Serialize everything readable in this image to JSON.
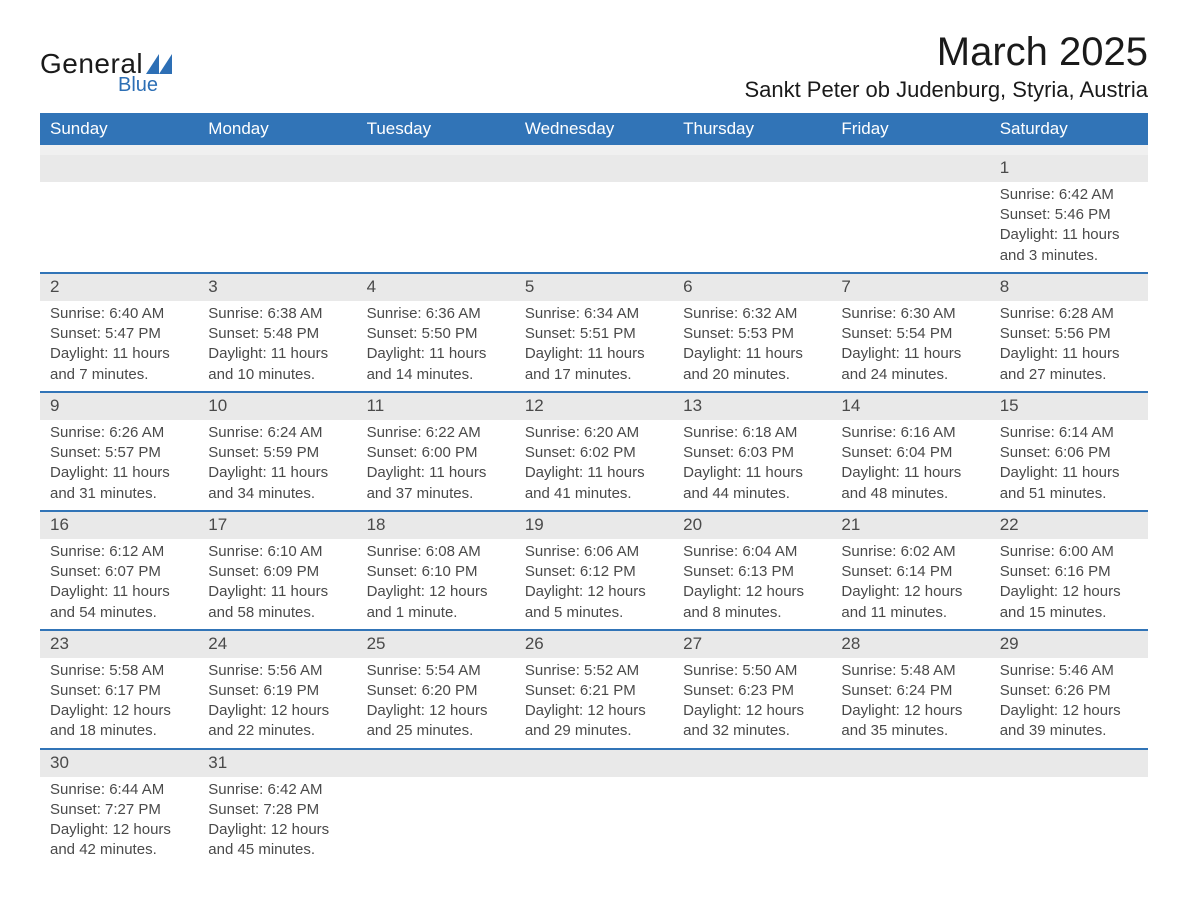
{
  "logo": {
    "text_main": "General",
    "text_sub": "Blue",
    "triangle_color": "#2d6fb5"
  },
  "title": {
    "month": "March 2025",
    "location": "Sankt Peter ob Judenburg, Styria, Austria"
  },
  "colors": {
    "header_bg": "#3174b7",
    "header_text": "#ffffff",
    "daynum_bg": "#e9e9e9",
    "week_border": "#3174b7",
    "body_text": "#4a4a4a",
    "page_bg": "#ffffff"
  },
  "typography": {
    "month_title_fontsize": 40,
    "location_fontsize": 22,
    "weekday_fontsize": 17,
    "daynum_fontsize": 17,
    "body_fontsize": 15
  },
  "weekdays": [
    "Sunday",
    "Monday",
    "Tuesday",
    "Wednesday",
    "Thursday",
    "Friday",
    "Saturday"
  ],
  "weeks": [
    [
      null,
      null,
      null,
      null,
      null,
      null,
      {
        "n": "1",
        "sr": "Sunrise: 6:42 AM",
        "ss": "Sunset: 5:46 PM",
        "d1": "Daylight: 11 hours",
        "d2": "and 3 minutes."
      }
    ],
    [
      {
        "n": "2",
        "sr": "Sunrise: 6:40 AM",
        "ss": "Sunset: 5:47 PM",
        "d1": "Daylight: 11 hours",
        "d2": "and 7 minutes."
      },
      {
        "n": "3",
        "sr": "Sunrise: 6:38 AM",
        "ss": "Sunset: 5:48 PM",
        "d1": "Daylight: 11 hours",
        "d2": "and 10 minutes."
      },
      {
        "n": "4",
        "sr": "Sunrise: 6:36 AM",
        "ss": "Sunset: 5:50 PM",
        "d1": "Daylight: 11 hours",
        "d2": "and 14 minutes."
      },
      {
        "n": "5",
        "sr": "Sunrise: 6:34 AM",
        "ss": "Sunset: 5:51 PM",
        "d1": "Daylight: 11 hours",
        "d2": "and 17 minutes."
      },
      {
        "n": "6",
        "sr": "Sunrise: 6:32 AM",
        "ss": "Sunset: 5:53 PM",
        "d1": "Daylight: 11 hours",
        "d2": "and 20 minutes."
      },
      {
        "n": "7",
        "sr": "Sunrise: 6:30 AM",
        "ss": "Sunset: 5:54 PM",
        "d1": "Daylight: 11 hours",
        "d2": "and 24 minutes."
      },
      {
        "n": "8",
        "sr": "Sunrise: 6:28 AM",
        "ss": "Sunset: 5:56 PM",
        "d1": "Daylight: 11 hours",
        "d2": "and 27 minutes."
      }
    ],
    [
      {
        "n": "9",
        "sr": "Sunrise: 6:26 AM",
        "ss": "Sunset: 5:57 PM",
        "d1": "Daylight: 11 hours",
        "d2": "and 31 minutes."
      },
      {
        "n": "10",
        "sr": "Sunrise: 6:24 AM",
        "ss": "Sunset: 5:59 PM",
        "d1": "Daylight: 11 hours",
        "d2": "and 34 minutes."
      },
      {
        "n": "11",
        "sr": "Sunrise: 6:22 AM",
        "ss": "Sunset: 6:00 PM",
        "d1": "Daylight: 11 hours",
        "d2": "and 37 minutes."
      },
      {
        "n": "12",
        "sr": "Sunrise: 6:20 AM",
        "ss": "Sunset: 6:02 PM",
        "d1": "Daylight: 11 hours",
        "d2": "and 41 minutes."
      },
      {
        "n": "13",
        "sr": "Sunrise: 6:18 AM",
        "ss": "Sunset: 6:03 PM",
        "d1": "Daylight: 11 hours",
        "d2": "and 44 minutes."
      },
      {
        "n": "14",
        "sr": "Sunrise: 6:16 AM",
        "ss": "Sunset: 6:04 PM",
        "d1": "Daylight: 11 hours",
        "d2": "and 48 minutes."
      },
      {
        "n": "15",
        "sr": "Sunrise: 6:14 AM",
        "ss": "Sunset: 6:06 PM",
        "d1": "Daylight: 11 hours",
        "d2": "and 51 minutes."
      }
    ],
    [
      {
        "n": "16",
        "sr": "Sunrise: 6:12 AM",
        "ss": "Sunset: 6:07 PM",
        "d1": "Daylight: 11 hours",
        "d2": "and 54 minutes."
      },
      {
        "n": "17",
        "sr": "Sunrise: 6:10 AM",
        "ss": "Sunset: 6:09 PM",
        "d1": "Daylight: 11 hours",
        "d2": "and 58 minutes."
      },
      {
        "n": "18",
        "sr": "Sunrise: 6:08 AM",
        "ss": "Sunset: 6:10 PM",
        "d1": "Daylight: 12 hours",
        "d2": "and 1 minute."
      },
      {
        "n": "19",
        "sr": "Sunrise: 6:06 AM",
        "ss": "Sunset: 6:12 PM",
        "d1": "Daylight: 12 hours",
        "d2": "and 5 minutes."
      },
      {
        "n": "20",
        "sr": "Sunrise: 6:04 AM",
        "ss": "Sunset: 6:13 PM",
        "d1": "Daylight: 12 hours",
        "d2": "and 8 minutes."
      },
      {
        "n": "21",
        "sr": "Sunrise: 6:02 AM",
        "ss": "Sunset: 6:14 PM",
        "d1": "Daylight: 12 hours",
        "d2": "and 11 minutes."
      },
      {
        "n": "22",
        "sr": "Sunrise: 6:00 AM",
        "ss": "Sunset: 6:16 PM",
        "d1": "Daylight: 12 hours",
        "d2": "and 15 minutes."
      }
    ],
    [
      {
        "n": "23",
        "sr": "Sunrise: 5:58 AM",
        "ss": "Sunset: 6:17 PM",
        "d1": "Daylight: 12 hours",
        "d2": "and 18 minutes."
      },
      {
        "n": "24",
        "sr": "Sunrise: 5:56 AM",
        "ss": "Sunset: 6:19 PM",
        "d1": "Daylight: 12 hours",
        "d2": "and 22 minutes."
      },
      {
        "n": "25",
        "sr": "Sunrise: 5:54 AM",
        "ss": "Sunset: 6:20 PM",
        "d1": "Daylight: 12 hours",
        "d2": "and 25 minutes."
      },
      {
        "n": "26",
        "sr": "Sunrise: 5:52 AM",
        "ss": "Sunset: 6:21 PM",
        "d1": "Daylight: 12 hours",
        "d2": "and 29 minutes."
      },
      {
        "n": "27",
        "sr": "Sunrise: 5:50 AM",
        "ss": "Sunset: 6:23 PM",
        "d1": "Daylight: 12 hours",
        "d2": "and 32 minutes."
      },
      {
        "n": "28",
        "sr": "Sunrise: 5:48 AM",
        "ss": "Sunset: 6:24 PM",
        "d1": "Daylight: 12 hours",
        "d2": "and 35 minutes."
      },
      {
        "n": "29",
        "sr": "Sunrise: 5:46 AM",
        "ss": "Sunset: 6:26 PM",
        "d1": "Daylight: 12 hours",
        "d2": "and 39 minutes."
      }
    ],
    [
      {
        "n": "30",
        "sr": "Sunrise: 6:44 AM",
        "ss": "Sunset: 7:27 PM",
        "d1": "Daylight: 12 hours",
        "d2": "and 42 minutes."
      },
      {
        "n": "31",
        "sr": "Sunrise: 6:42 AM",
        "ss": "Sunset: 7:28 PM",
        "d1": "Daylight: 12 hours",
        "d2": "and 45 minutes."
      },
      null,
      null,
      null,
      null,
      null
    ]
  ]
}
